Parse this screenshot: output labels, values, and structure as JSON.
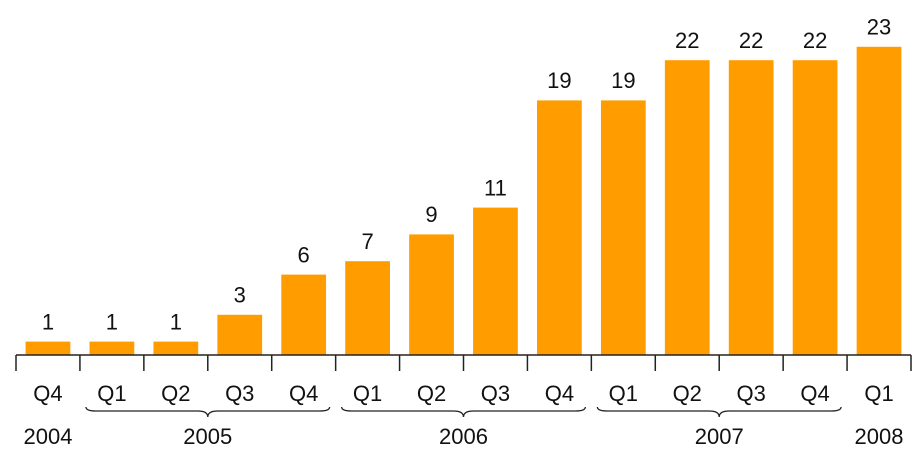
{
  "chart_data": {
    "type": "bar",
    "categories": [
      "Q4",
      "Q1",
      "Q2",
      "Q3",
      "Q4",
      "Q1",
      "Q2",
      "Q3",
      "Q4",
      "Q1",
      "Q2",
      "Q3",
      "Q4",
      "Q1"
    ],
    "values": [
      1,
      1,
      1,
      3,
      6,
      7,
      9,
      11,
      19,
      19,
      22,
      22,
      22,
      23
    ],
    "color": "#ff9c00",
    "groups": [
      {
        "name": "2004",
        "count": 1
      },
      {
        "name": "2005",
        "count": 4
      },
      {
        "name": "2006",
        "count": 4
      },
      {
        "name": "2007",
        "count": 4
      },
      {
        "name": "2008",
        "count": 1
      }
    ]
  }
}
